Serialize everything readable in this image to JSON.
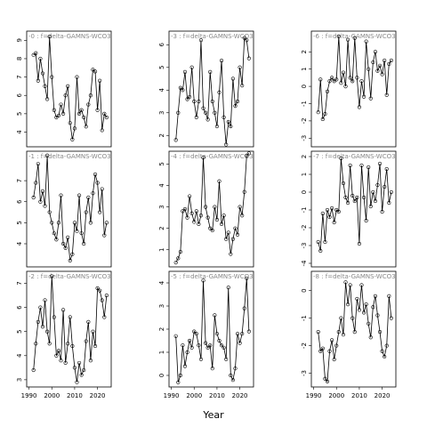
{
  "xlabel": "Year",
  "chart_data": [
    {
      "type": "line",
      "title": "-0 : f=delta-GAMNS-WCO3-",
      "x": [
        1992,
        1993,
        1994,
        1995,
        1996,
        1997,
        1998,
        1999,
        2000,
        2001,
        2002,
        2003,
        2004,
        2005,
        2006,
        2007,
        2008,
        2009,
        2010,
        2011,
        2012,
        2013,
        2014,
        2015,
        2016,
        2017,
        2018,
        2019,
        2020,
        2021,
        2022,
        2023,
        2024
      ],
      "values": [
        8.2,
        8.3,
        6.8,
        8.0,
        7.2,
        6.5,
        5.8,
        9.2,
        7.0,
        5.2,
        4.8,
        4.9,
        5.5,
        5.0,
        6.0,
        6.5,
        4.5,
        3.6,
        4.2,
        7.0,
        5.0,
        5.2,
        4.8,
        4.3,
        5.5,
        6.0,
        7.4,
        7.3,
        5.2,
        6.8,
        4.1,
        5.0,
        4.8
      ],
      "xlim": [
        1989,
        2026
      ],
      "ylim": [
        3.2,
        9.5
      ],
      "yticks": [
        4,
        5,
        6,
        7,
        8,
        9
      ],
      "color": "#000000"
    },
    {
      "type": "line",
      "title": "-1 : f=delta-GAMNS-WCO3-",
      "x": [
        1992,
        1993,
        1994,
        1995,
        1996,
        1997,
        1998,
        1999,
        2000,
        2001,
        2002,
        2003,
        2004,
        2005,
        2006,
        2007,
        2008,
        2009,
        2010,
        2011,
        2012,
        2013,
        2014,
        2015,
        2016,
        2017,
        2018,
        2019,
        2020,
        2021,
        2022,
        2023,
        2024
      ],
      "values": [
        6.2,
        6.9,
        7.8,
        6.0,
        6.5,
        5.8,
        8.2,
        5.5,
        5.0,
        4.5,
        4.2,
        5.0,
        6.3,
        4.0,
        3.8,
        4.3,
        3.2,
        3.5,
        5.0,
        4.6,
        6.3,
        4.5,
        4.0,
        5.5,
        6.2,
        5.0,
        6.4,
        7.3,
        6.9,
        5.5,
        6.6,
        4.4,
        5.0
      ],
      "xlim": [
        1989,
        2026
      ],
      "ylim": [
        2.9,
        8.4
      ],
      "yticks": [
        4,
        5,
        6,
        7
      ],
      "color": "#000000"
    },
    {
      "type": "line",
      "title": "-2 : f=delta-GAMNS-WCO3-",
      "x": [
        1992,
        1993,
        1994,
        1995,
        1996,
        1997,
        1998,
        1999,
        2000,
        2001,
        2002,
        2003,
        2004,
        2005,
        2006,
        2007,
        2008,
        2009,
        2010,
        2011,
        2012,
        2013,
        2014,
        2015,
        2016,
        2017,
        2018,
        2019,
        2020,
        2021,
        2022,
        2023,
        2024
      ],
      "values": [
        3.4,
        4.5,
        5.4,
        6.0,
        5.2,
        6.3,
        5.0,
        4.5,
        7.3,
        5.6,
        4.0,
        4.2,
        3.8,
        5.9,
        3.7,
        4.5,
        5.6,
        4.4,
        3.5,
        2.9,
        3.7,
        3.2,
        3.4,
        4.6,
        5.4,
        3.8,
        5.0,
        4.4,
        6.8,
        6.7,
        6.3,
        5.6,
        6.5
      ],
      "xlim": [
        1989,
        2026
      ],
      "ylim": [
        2.7,
        7.5
      ],
      "yticks": [
        3,
        4,
        5,
        6,
        7
      ],
      "xticks": [
        1990,
        2000,
        2010,
        2020
      ],
      "color": "#000000"
    },
    {
      "type": "line",
      "title": "-3 : f=delta-GAMNS-WCO3-",
      "x": [
        1992,
        1993,
        1994,
        1995,
        1996,
        1997,
        1998,
        1999,
        2000,
        2001,
        2002,
        2003,
        2004,
        2005,
        2006,
        2007,
        2008,
        2009,
        2010,
        2011,
        2012,
        2013,
        2014,
        2015,
        2016,
        2017,
        2018,
        2019,
        2020,
        2021,
        2022,
        2023,
        2024
      ],
      "values": [
        1.8,
        3.0,
        4.1,
        4.0,
        4.8,
        3.6,
        3.7,
        5.0,
        3.5,
        2.8,
        3.5,
        6.2,
        3.2,
        3.0,
        2.7,
        4.8,
        3.5,
        3.0,
        2.4,
        3.9,
        5.3,
        2.8,
        1.6,
        2.6,
        2.4,
        4.5,
        3.3,
        3.5,
        5.0,
        4.2,
        6.3,
        6.2,
        5.4
      ],
      "xlim": [
        1989,
        2026
      ],
      "ylim": [
        1.5,
        6.6
      ],
      "yticks": [
        2,
        3,
        4,
        5,
        6
      ],
      "color": "#000000"
    },
    {
      "type": "line",
      "title": "-4 : f=delta-GAMNS-WCO3-",
      "x": [
        1992,
        1993,
        1994,
        1995,
        1996,
        1997,
        1998,
        1999,
        2000,
        2001,
        2002,
        2003,
        2004,
        2005,
        2006,
        2007,
        2008,
        2009,
        2010,
        2011,
        2012,
        2013,
        2014,
        2015,
        2016,
        2017,
        2018,
        2019,
        2020,
        2021,
        2022,
        2023,
        2024
      ],
      "values": [
        0.4,
        0.6,
        0.9,
        2.8,
        2.9,
        2.5,
        3.5,
        2.7,
        2.3,
        2.8,
        2.2,
        2.6,
        5.3,
        3.0,
        2.5,
        2.0,
        1.9,
        3.0,
        2.4,
        4.2,
        2.2,
        2.6,
        1.5,
        1.8,
        0.8,
        1.5,
        2.0,
        1.7,
        3.0,
        2.6,
        3.7,
        5.4,
        5.5
      ],
      "xlim": [
        1989,
        2026
      ],
      "ylim": [
        0.2,
        5.6
      ],
      "yticks": [
        1,
        2,
        3,
        4,
        5
      ],
      "color": "#000000"
    },
    {
      "type": "line",
      "title": "-5 : f=delta-GAMNS-WCO3-",
      "x": [
        1992,
        1993,
        1994,
        1995,
        1996,
        1997,
        1998,
        1999,
        2000,
        2001,
        2002,
        2003,
        2004,
        2005,
        2006,
        2007,
        2008,
        2009,
        2010,
        2011,
        2012,
        2013,
        2014,
        2015,
        2016,
        2017,
        2018,
        2019,
        2020,
        2021,
        2022,
        2023,
        2024
      ],
      "values": [
        1.7,
        -0.3,
        0.0,
        1.3,
        0.4,
        1.0,
        1.5,
        1.2,
        1.9,
        1.8,
        1.3,
        0.7,
        4.1,
        1.4,
        1.2,
        1.3,
        0.3,
        2.6,
        1.8,
        1.5,
        1.3,
        1.2,
        0.7,
        3.8,
        0.0,
        -0.2,
        0.3,
        1.8,
        1.4,
        1.8,
        2.9,
        4.2,
        1.9
      ],
      "xlim": [
        1989,
        2026
      ],
      "ylim": [
        -0.5,
        4.5
      ],
      "yticks": [
        0,
        1,
        2,
        3,
        4
      ],
      "xticks": [
        1990,
        2000,
        2010,
        2020
      ],
      "color": "#000000"
    },
    {
      "type": "line",
      "title": "-6 : f=delta-GAMNS-WCO3-",
      "x": [
        1992,
        1993,
        1994,
        1995,
        1996,
        1997,
        1998,
        1999,
        2000,
        2001,
        2002,
        2003,
        2004,
        2005,
        2006,
        2007,
        2008,
        2009,
        2010,
        2011,
        2012,
        2013,
        2014,
        2015,
        2016,
        2017,
        2018,
        2019,
        2020,
        2021,
        2022,
        2023,
        2024
      ],
      "values": [
        -1.5,
        0.4,
        -1.9,
        -1.6,
        -0.3,
        0.3,
        0.5,
        0.3,
        0.4,
        2.9,
        0.2,
        0.8,
        0.0,
        2.7,
        0.5,
        0.3,
        2.8,
        0.5,
        -1.2,
        0.3,
        -0.6,
        2.6,
        1.0,
        -0.7,
        1.4,
        2.0,
        0.9,
        1.2,
        0.7,
        1.5,
        -0.5,
        1.3,
        1.5
      ],
      "xlim": [
        1989,
        2026
      ],
      "ylim": [
        -3.5,
        3.2
      ],
      "yticks": [
        -3,
        -2,
        -1,
        0,
        1,
        2
      ],
      "color": "#000000"
    },
    {
      "type": "line",
      "title": "-7 : f=delta-GAMNS-WCO3-",
      "x": [
        1992,
        1993,
        1994,
        1995,
        1996,
        1997,
        1998,
        1999,
        2000,
        2001,
        2002,
        2003,
        2004,
        2005,
        2006,
        2007,
        2008,
        2009,
        2010,
        2011,
        2012,
        2013,
        2014,
        2015,
        2016,
        2017,
        2018,
        2019,
        2020,
        2021,
        2022,
        2023,
        2024
      ],
      "values": [
        -2.8,
        -3.3,
        -1.2,
        -2.8,
        -1.0,
        -1.4,
        -0.9,
        -1.7,
        -1.0,
        -1.1,
        1.9,
        0.5,
        -0.3,
        -0.6,
        1.5,
        -0.2,
        -0.5,
        -0.3,
        -2.9,
        1.5,
        -0.3,
        -1.6,
        1.4,
        -0.8,
        0.0,
        -0.5,
        0.4,
        1.6,
        -1.1,
        0.3,
        1.3,
        -0.6,
        0.0
      ],
      "xlim": [
        1989,
        2026
      ],
      "ylim": [
        -4.2,
        2.3
      ],
      "yticks": [
        -4,
        -3,
        -2,
        -1,
        0,
        1,
        2
      ],
      "color": "#000000"
    },
    {
      "type": "line",
      "title": "-8 : f=delta-GAMNS-WCO3-",
      "x": [
        1992,
        1993,
        1994,
        1995,
        1996,
        1997,
        1998,
        1999,
        2000,
        2001,
        2002,
        2003,
        2004,
        2005,
        2006,
        2007,
        2008,
        2009,
        2010,
        2011,
        2012,
        2013,
        2014,
        2015,
        2016,
        2017,
        2018,
        2019,
        2020,
        2021,
        2022,
        2023,
        2024
      ],
      "values": [
        -1.5,
        -2.2,
        -2.1,
        -3.2,
        -3.3,
        -2.2,
        -1.8,
        -2.5,
        -2.0,
        -1.5,
        -1.0,
        -1.6,
        0.3,
        -0.5,
        0.2,
        -1.0,
        -1.5,
        -0.3,
        -0.7,
        0.2,
        -0.8,
        -0.5,
        -1.2,
        -1.7,
        -0.6,
        -0.2,
        -0.9,
        -1.5,
        -2.2,
        -2.4,
        -2.0,
        -0.2,
        -1.0
      ],
      "xlim": [
        1989,
        2026
      ],
      "ylim": [
        -3.5,
        0.7
      ],
      "yticks": [
        -3,
        -2,
        -1,
        0
      ],
      "xticks": [
        1990,
        2000,
        2010,
        2020
      ],
      "color": "#000000"
    }
  ]
}
